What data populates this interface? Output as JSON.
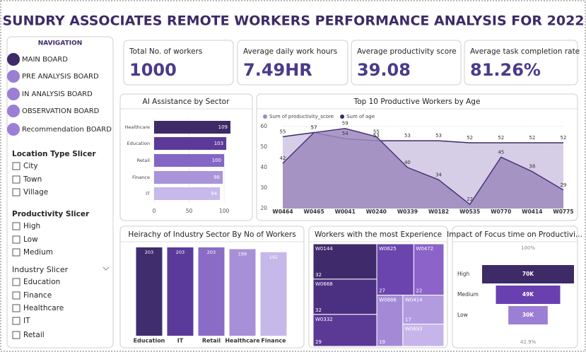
{
  "title": "SUNDRY ASSOCIATES REMOTE WORKERS PERFORMANCE ANALYSIS FOR 2022",
  "navigation": {
    "title": "NAVIGATION",
    "items": [
      "MAIN BOARD",
      "PRE ANALYSIS BOARD",
      "IN ANALYSIS BOARD",
      "OBSERVATION BOARD",
      "Recommendation BOARD"
    ]
  },
  "slicers": [
    {
      "title": "Location Type Slicer",
      "items": [
        "City",
        "Town",
        "Village"
      ]
    },
    {
      "title": "Productivity Slicer",
      "items": [
        "High",
        "Low",
        "Medium"
      ]
    },
    {
      "title": "Industry Slicer",
      "items": [
        "Education",
        "Finance",
        "Healthcare",
        "IT",
        "Retail"
      ]
    }
  ],
  "kpis": [
    {
      "label": "Total No. of workers",
      "value": "1000"
    },
    {
      "label": "Average daily work hours",
      "value": "7.49HR"
    },
    {
      "label": "Average productivity score",
      "value": "39.08"
    },
    {
      "label": "Average task completion rate",
      "value": "81.26%"
    }
  ],
  "chart_data": [
    {
      "type": "hbar",
      "title": "AI Assistance by Sector",
      "categories": [
        "Healthcare",
        "Education",
        "Retail",
        "Finance",
        "IT"
      ],
      "values": [
        109,
        103,
        100,
        98,
        94
      ],
      "colors": [
        "#3d2a66",
        "#5b3a9a",
        "#8467c4",
        "#a993d9",
        "#c7b9ea"
      ],
      "xlim": [
        0,
        112
      ],
      "xticks": [
        0,
        50,
        100
      ]
    },
    {
      "type": "area",
      "title": "Top 10 Productive Workers by Age",
      "categories": [
        "W0464",
        "W0465",
        "W0041",
        "W0240",
        "W0339",
        "W0182",
        "W0535",
        "W0770",
        "W0414",
        "W0775"
      ],
      "series": [
        {
          "name": "Sum of productivity_score",
          "color": "#9b8ac4",
          "values": [
            42,
            57,
            59,
            55,
            40,
            34,
            22,
            45,
            38,
            29
          ]
        },
        {
          "name": "Sum of age",
          "color": "#3d2a66",
          "values": [
            55,
            57,
            54,
            53,
            53,
            53,
            52,
            52,
            52,
            52
          ]
        }
      ],
      "ylim": [
        20,
        62
      ],
      "yticks": [
        20,
        30,
        40,
        50,
        60
      ]
    },
    {
      "type": "column",
      "title": "Heirachy of Industry Sector By No of Workers",
      "categories": [
        "Education",
        "IT",
        "Retail",
        "Healthcare",
        "Finance"
      ],
      "values": [
        203,
        203,
        203,
        199,
        192
      ],
      "colors": [
        "#3f2d6e",
        "#5a3a9a",
        "#8a6cc6",
        "#a890d8",
        "#c6b8e8"
      ]
    },
    {
      "type": "treemap",
      "title": "Workers with the most Experience",
      "labels": [
        "W0144",
        "W0668",
        "W0332",
        "W0625",
        "W0472",
        "W0886",
        "W0414",
        "W0693"
      ],
      "values": [
        32,
        32,
        29,
        27,
        22,
        19,
        17,
        13
      ],
      "value_labels": [
        "32",
        "32",
        "29",
        "27",
        "22",
        "19",
        "17",
        null
      ],
      "colors": [
        "#3f2a6b",
        "#4b2f80",
        "#5b3a96",
        "#6a45ad",
        "#8b63c9",
        "#a48ad6",
        "#b39be0",
        "#c6b5ea"
      ]
    },
    {
      "type": "funnel",
      "title": "Impact of Focus time on Productivi...",
      "categories": [
        "High",
        "Medium",
        "Low"
      ],
      "values": [
        70000,
        49000,
        30000
      ],
      "value_labels": [
        "70K",
        "49K",
        "30K"
      ],
      "colors": [
        "#3d2a66",
        "#6a3fb0",
        "#9b7fd4"
      ],
      "annotations": [
        "100%",
        "42.9%"
      ]
    }
  ]
}
